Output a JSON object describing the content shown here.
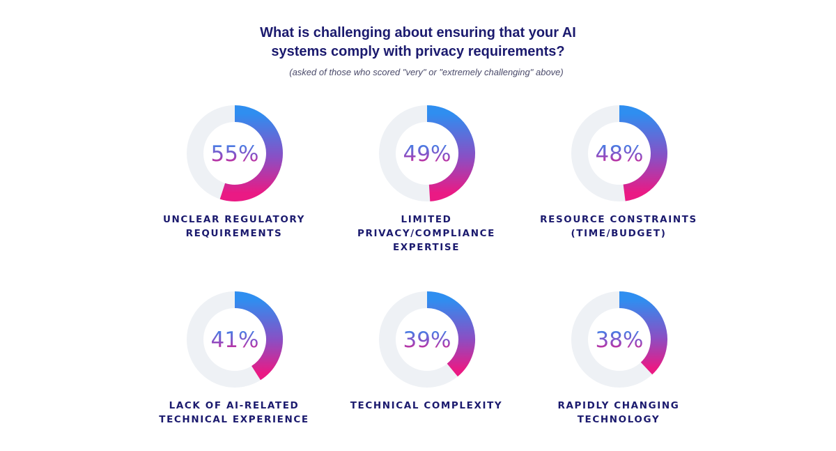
{
  "chart_data": {
    "type": "pie",
    "title_lines": [
      "What is challenging about ensuring that your AI",
      "systems comply with privacy requirements?"
    ],
    "subtitle": "(asked of those who scored \"very\" or \"extremely challenging\" above)",
    "items": [
      {
        "value": 55,
        "value_label": "55%",
        "label_lines": [
          "UNCLEAR REGULATORY",
          "REQUIREMENTS"
        ]
      },
      {
        "value": 49,
        "value_label": "49%",
        "label_lines": [
          "LIMITED",
          "PRIVACY/COMPLIANCE",
          "EXPERTISE"
        ]
      },
      {
        "value": 48,
        "value_label": "48%",
        "label_lines": [
          "RESOURCE CONSTRAINTS",
          "(TIME/BUDGET)"
        ]
      },
      {
        "value": 41,
        "value_label": "41%",
        "label_lines": [
          "LACK OF AI-RELATED",
          "TECHNICAL EXPERIENCE"
        ]
      },
      {
        "value": 39,
        "value_label": "39%",
        "label_lines": [
          "TECHNICAL COMPLEXITY"
        ]
      },
      {
        "value": 38,
        "value_label": "38%",
        "label_lines": [
          "RAPIDLY CHANGING",
          "TECHNOLOGY"
        ]
      }
    ],
    "colors": {
      "track": "#eef1f5",
      "gradient_start": "#2f8ef0",
      "gradient_mid": "#8a4fc4",
      "gradient_end": "#ea1a84",
      "title": "#1b1a6e"
    }
  }
}
